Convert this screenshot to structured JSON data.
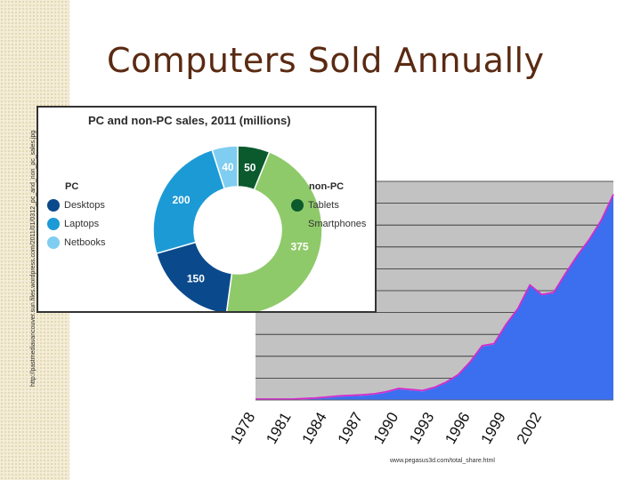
{
  "slide": {
    "title": "Computers Sold Annually",
    "side_url": "http://pastmediavancouver.sun.files.wordpress.com/2011/01/0312_pc_and_non_pc_sales.jpg",
    "footer_url": "www.pegasus3d.com/total_share.html"
  },
  "chart_data": [
    {
      "type": "pie",
      "title": "PC and non-PC sales, 2011 (millions)",
      "groups": [
        {
          "name": "PC",
          "items": [
            "Desktops",
            "Laptops",
            "Netbooks"
          ]
        },
        {
          "name": "non-PC",
          "items": [
            "Tablets",
            "Smartphones"
          ]
        }
      ],
      "slices": [
        {
          "label": "Tablets",
          "value": 50,
          "color": "#0b5a2e"
        },
        {
          "label": "Smartphones",
          "value": 375,
          "color": "#8fca6a"
        },
        {
          "label": "Desktops",
          "value": 150,
          "color": "#0a4a8c"
        },
        {
          "label": "Laptops",
          "value": 200,
          "color": "#1c9ad6"
        },
        {
          "label": "Netbooks",
          "value": 40,
          "color": "#7fcdf0"
        }
      ]
    },
    {
      "type": "area",
      "x": [
        1978,
        1979,
        1980,
        1981,
        1982,
        1983,
        1984,
        1985,
        1986,
        1987,
        1988,
        1989,
        1990,
        1991,
        1992,
        1993,
        1994,
        1995,
        1996,
        1997,
        1998,
        1999,
        2000,
        2001,
        2002,
        2003,
        2004,
        2005,
        2006,
        2007,
        2008
      ],
      "values": [
        0,
        0,
        0,
        0,
        0.5,
        1,
        2,
        3,
        3.5,
        4,
        5,
        7,
        10,
        9,
        8,
        11,
        16,
        23,
        35,
        50,
        52,
        70,
        85,
        107,
        98,
        100,
        118,
        135,
        150,
        168,
        192
      ],
      "xticks": [
        "1978",
        "1981",
        "1984",
        "1987",
        "1990",
        "1993",
        "1996",
        "1999",
        "2002"
      ],
      "colors": {
        "fill": "#3b6ff0",
        "edge": "#d42ad0",
        "plot_bg": "#c2c2c2",
        "grid": "#2a2a2a"
      },
      "grid": true
    }
  ]
}
